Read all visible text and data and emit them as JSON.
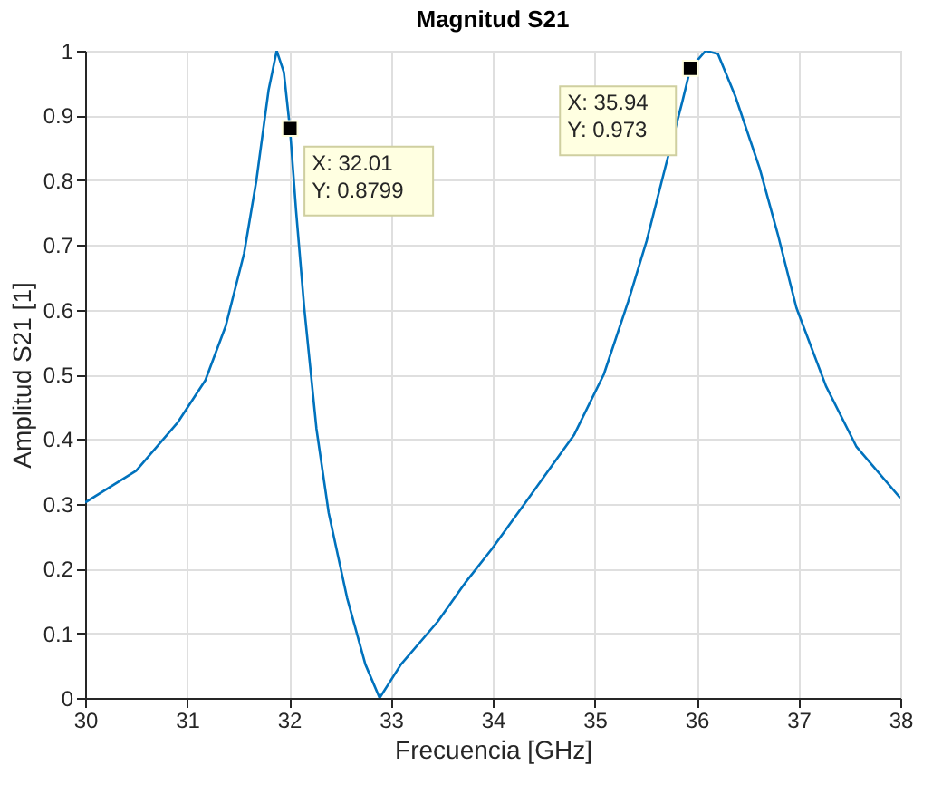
{
  "chart_data": {
    "type": "line",
    "title": "Magnitud S21",
    "xlabel": "Frecuencia [GHz]",
    "ylabel": "Amplitud S21 [1]",
    "series": [
      {
        "color": "#0072bd",
        "x": [
          30,
          30.5,
          30.91,
          31.18,
          31.38,
          31.56,
          31.68,
          31.8,
          31.88,
          31.95,
          32.01,
          32.07,
          32.15,
          32.27,
          32.39,
          32.57,
          32.75,
          32.89,
          33.1,
          33.46,
          33.73,
          33.99,
          34.33,
          34.8,
          35.09,
          35.33,
          35.51,
          35.69,
          35.86,
          35.94,
          36.09,
          36.21,
          36.38,
          36.62,
          36.8,
          36.98,
          37.27,
          37.57,
          38
        ],
        "values": [
          0.302,
          0.351,
          0.426,
          0.491,
          0.575,
          0.687,
          0.799,
          0.939,
          1.0,
          0.967,
          0.8799,
          0.753,
          0.603,
          0.416,
          0.286,
          0.155,
          0.052,
          0,
          0.052,
          0.118,
          0.178,
          0.23,
          0.304,
          0.407,
          0.5,
          0.613,
          0.706,
          0.818,
          0.921,
          0.973,
          1.0,
          0.995,
          0.93,
          0.818,
          0.715,
          0.603,
          0.482,
          0.388,
          0.309
        ]
      },
      {
        "type": "scatter",
        "marker": "square",
        "color": "#000000",
        "x": [
          32.01,
          35.94
        ],
        "values": [
          0.8799,
          0.973
        ]
      }
    ],
    "annotations": [
      {
        "text": "X: 32.01\nY: 0.8799",
        "x": 32.01,
        "y": 0.8799
      },
      {
        "text": "X: 35.94\nY: 0.973",
        "x": 35.94,
        "y": 0.973
      }
    ],
    "xlim": [
      30,
      38
    ],
    "xticks": [
      30,
      31,
      32,
      33,
      34,
      35,
      36,
      37,
      38
    ],
    "ylim": [
      0,
      1
    ],
    "yticks": [
      0,
      0.1,
      0.2,
      0.3,
      0.4,
      0.5,
      0.6,
      0.7,
      0.8,
      0.9,
      1
    ],
    "grid": true,
    "marker": "none",
    "line_style": "solid"
  }
}
